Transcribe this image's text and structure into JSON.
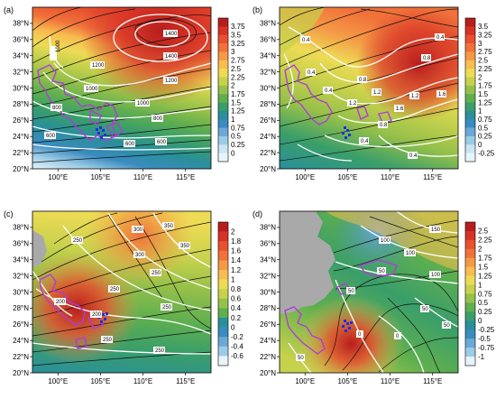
{
  "panels": [
    {
      "id": "a",
      "label": "(a)",
      "colorbar": {
        "labels": [
          "3.75",
          "3.5",
          "3.25",
          "3",
          "2.75",
          "2.5",
          "2.25",
          "2",
          "1.75",
          "1.5",
          "1.25",
          "1",
          "0.75",
          "0.5",
          "0.25",
          "0"
        ],
        "colors": [
          "#b81d1d",
          "#d63226",
          "#e8502e",
          "#f0713a",
          "#f59946",
          "#f8bc50",
          "#eedb55",
          "#c6d14c",
          "#95c04a",
          "#5faf4f",
          "#3a9e6a",
          "#2a8f9a",
          "#3a8bbf",
          "#6aa8d6",
          "#9ccbe6",
          "#c9e6f3",
          "#e7f4fa"
        ]
      },
      "contours": [
        {
          "label": "1400"
        },
        {
          "label": "1400"
        },
        {
          "label": "1200"
        },
        {
          "label": "1000"
        },
        {
          "label": "1000"
        },
        {
          "label": "800"
        },
        {
          "label": "800"
        },
        {
          "label": "600"
        },
        {
          "label": "600"
        },
        {
          "label": "1000"
        },
        {
          "label": "1200"
        },
        {
          "label": "600"
        }
      ]
    },
    {
      "id": "b",
      "label": "(b)",
      "colorbar": {
        "labels": [
          "3.5",
          "3.25",
          "3",
          "2.75",
          "2.5",
          "2.25",
          "2",
          "1.75",
          "1.5",
          "1.25",
          "1",
          "0.75",
          "0.5",
          "0.25",
          "0",
          "-0.25"
        ],
        "colors": [
          "#b81d1d",
          "#d63226",
          "#e8502e",
          "#f0713a",
          "#f59946",
          "#f8bc50",
          "#eedb55",
          "#c6d14c",
          "#95c04a",
          "#5faf4f",
          "#3a9e6a",
          "#2a8f9a",
          "#3a8bbf",
          "#6aa8d6",
          "#9ccbe6",
          "#c9e6f3",
          "#e7f4fa"
        ]
      },
      "contours": [
        {
          "label": "0.4"
        },
        {
          "label": "0.4"
        },
        {
          "label": "0.4"
        },
        {
          "label": "0.8"
        },
        {
          "label": "0.8"
        },
        {
          "label": "1.2"
        },
        {
          "label": "1.2"
        },
        {
          "label": "1.6"
        },
        {
          "label": "1.6"
        },
        {
          "label": "0.8"
        },
        {
          "label": "0.4"
        },
        {
          "label": "0.4"
        },
        {
          "label": "0.4"
        },
        {
          "label": "1.2"
        }
      ]
    },
    {
      "id": "c",
      "label": "(c)",
      "colorbar": {
        "labels": [
          "2",
          "1.8",
          "1.6",
          "1.4",
          "1.2",
          "1",
          "0.8",
          "0.6",
          "0.4",
          "0.2",
          "0",
          "-0.2",
          "-0.4",
          "-0.6"
        ],
        "colors": [
          "#b81d1d",
          "#d63226",
          "#e8502e",
          "#f0713a",
          "#f59946",
          "#f8bc50",
          "#eedb55",
          "#c6d14c",
          "#95c04a",
          "#5faf4f",
          "#2a8f9a",
          "#3a8bbf",
          "#6aa8d6",
          "#9ccbe6",
          "#e7f4fa"
        ]
      },
      "contours": [
        {
          "label": "350"
        },
        {
          "label": "300"
        },
        {
          "label": "250"
        },
        {
          "label": "250"
        },
        {
          "label": "250"
        },
        {
          "label": "200"
        },
        {
          "label": "200"
        },
        {
          "label": "250"
        },
        {
          "label": "300"
        },
        {
          "label": "350"
        },
        {
          "label": "250"
        },
        {
          "label": "250"
        }
      ]
    },
    {
      "id": "d",
      "label": "(d)",
      "colorbar": {
        "labels": [
          "2.5",
          "2.25",
          "2",
          "1.75",
          "1.5",
          "1.25",
          "1",
          "0.75",
          "0.5",
          "0.25",
          "0",
          "-0.25",
          "-0.5",
          "-0.75",
          "-1"
        ],
        "colors": [
          "#b81d1d",
          "#d63226",
          "#e8502e",
          "#f0713a",
          "#f59946",
          "#f8bc50",
          "#eedb55",
          "#c6d14c",
          "#95c04a",
          "#5faf4f",
          "#3a9e6a",
          "#2a8f9a",
          "#3a8bbf",
          "#6aa8d6",
          "#9ccbe6",
          "#e7f4fa"
        ]
      },
      "contours": [
        {
          "label": "150"
        },
        {
          "label": "100"
        },
        {
          "label": "100"
        },
        {
          "label": "50"
        },
        {
          "label": "50"
        },
        {
          "label": "50"
        },
        {
          "label": "0"
        },
        {
          "label": "0"
        },
        {
          "label": "50"
        },
        {
          "label": "100"
        },
        {
          "label": "50"
        }
      ]
    }
  ],
  "axes": {
    "y_ticks": [
      "38°N",
      "36°N",
      "34°N",
      "32°N",
      "30°N",
      "28°N",
      "26°N",
      "24°N",
      "22°N",
      "20°N"
    ],
    "x_ticks": [
      "100°E",
      "105°E",
      "110°E",
      "115°E"
    ]
  }
}
